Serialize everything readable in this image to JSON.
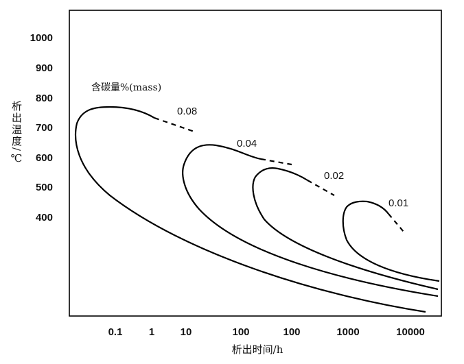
{
  "chart_data": {
    "type": "line",
    "title": "",
    "legend_title": "含碳量%(mass)",
    "xlabel": "析出时间/h",
    "ylabel": "析出温度/℃",
    "xscale": "log",
    "x_ticks": [
      "0.1",
      "1",
      "10",
      "100",
      "100",
      "1000",
      "10000"
    ],
    "y_ticks": [
      "1000",
      "900",
      "800",
      "700",
      "600",
      "500",
      "400"
    ],
    "ylim": [
      180,
      1040
    ],
    "grid": false,
    "series": [
      {
        "name": "0.08",
        "nose_temperature": 770,
        "nose_time_h": 0.02
      },
      {
        "name": "0.04",
        "nose_temperature": 640,
        "nose_time_h": 5
      },
      {
        "name": "0.02",
        "nose_temperature": 615,
        "nose_time_h": 50
      },
      {
        "name": "0.01",
        "nose_temperature": 455,
        "nose_time_h": 1000
      }
    ]
  }
}
